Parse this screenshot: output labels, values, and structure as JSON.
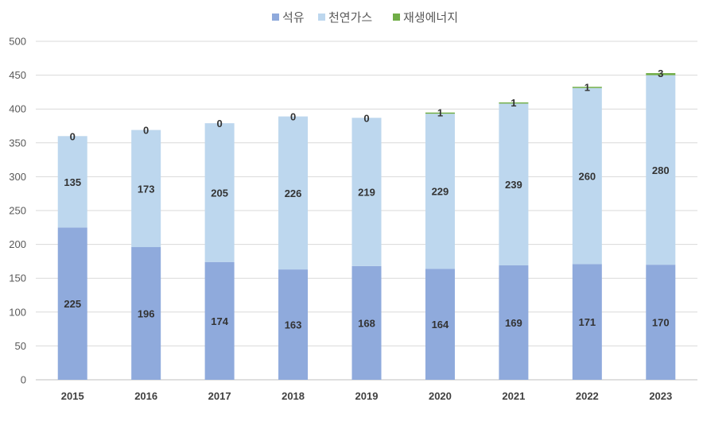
{
  "chart_data": {
    "type": "bar",
    "stacked": true,
    "title": "",
    "xlabel": "",
    "ylabel": "",
    "categories": [
      "2015",
      "2016",
      "2017",
      "2018",
      "2019",
      "2020",
      "2021",
      "2022",
      "2023"
    ],
    "series": [
      {
        "name": "석유",
        "color": "#8faadc",
        "values": [
          225,
          196,
          174,
          163,
          168,
          164,
          169,
          171,
          170
        ]
      },
      {
        "name": "천연가스",
        "color": "#bdd7ee",
        "values": [
          135,
          173,
          205,
          226,
          219,
          229,
          239,
          260,
          280
        ]
      },
      {
        "name": "재생에너지",
        "color": "#70ad47",
        "values": [
          0,
          0,
          0,
          0,
          0,
          1,
          1,
          1,
          3
        ]
      }
    ],
    "ylim": [
      0,
      500
    ],
    "yticks": [
      0,
      50,
      100,
      150,
      200,
      250,
      300,
      350,
      400,
      450,
      500
    ],
    "grid": true,
    "legend_position": "top-center",
    "data_labels": true
  }
}
